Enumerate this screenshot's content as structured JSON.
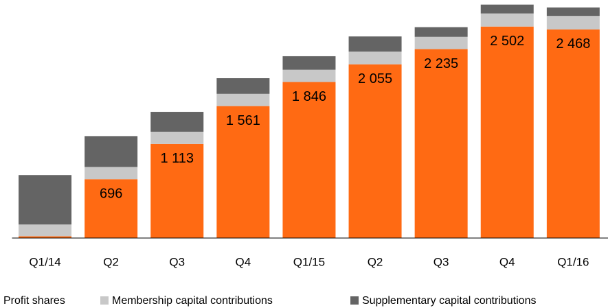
{
  "chart_data": {
    "type": "bar",
    "stacked": true,
    "categories": [
      "Q1/14",
      "Q2",
      "Q3",
      "Q4",
      "Q1/15",
      "Q2",
      "Q3",
      "Q4",
      "Q1/16"
    ],
    "series": [
      {
        "name": "Profit shares",
        "color": "#ff6a13",
        "values": [
          20,
          696,
          1113,
          1561,
          1846,
          2055,
          2235,
          2502,
          2468
        ],
        "value_labels": [
          null,
          "696",
          "1 113",
          "1 561",
          "1 846",
          "2 055",
          "2 235",
          "2 502",
          "2 468"
        ]
      },
      {
        "name": "Membership capital contributions",
        "color": "#c8c8c8",
        "values": [
          140,
          145,
          145,
          145,
          145,
          150,
          145,
          155,
          160
        ]
      },
      {
        "name": "Supplementary capital contributions",
        "color": "#646464",
        "values": [
          585,
          365,
          235,
          185,
          160,
          180,
          115,
          105,
          100
        ]
      }
    ],
    "ylim": [
      0,
      2800
    ]
  }
}
